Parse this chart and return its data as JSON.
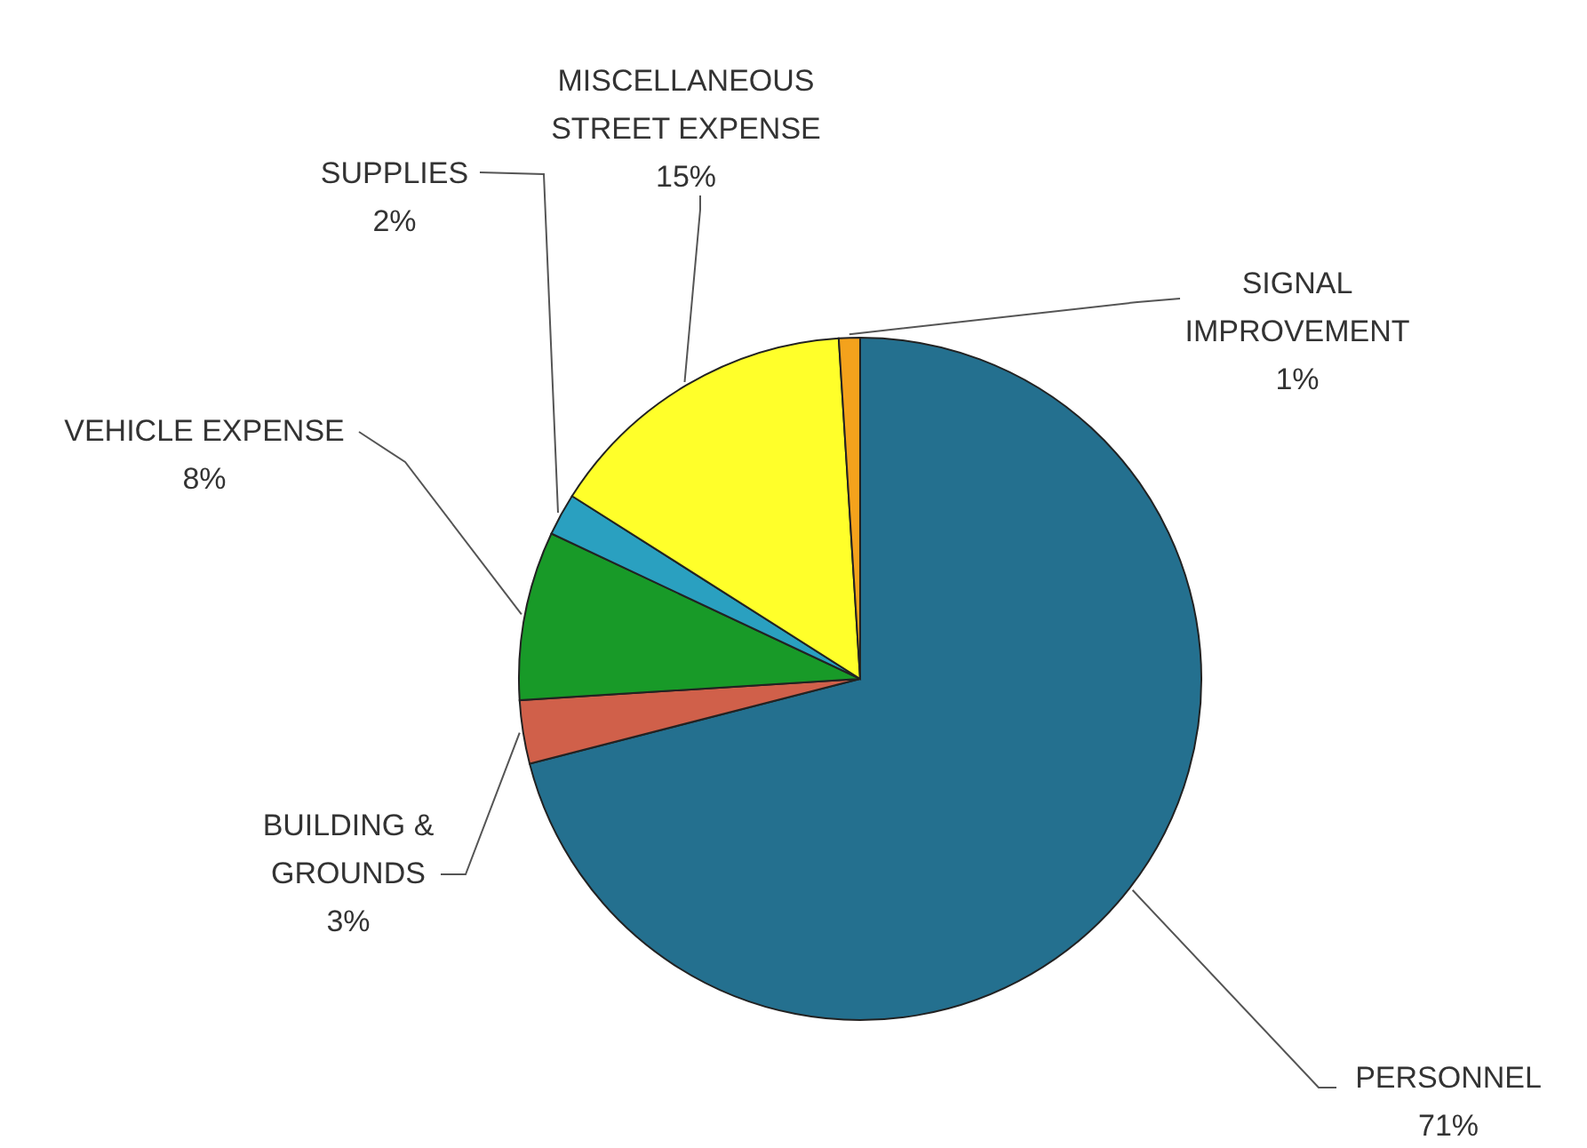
{
  "chart_data": {
    "type": "pie",
    "categories": [
      "PERSONNEL",
      "BUILDING & GROUNDS",
      "VEHICLE EXPENSE",
      "SUPPLIES",
      "MISCELLANEOUS STREET EXPENSE",
      "SIGNAL IMPROVEMENT"
    ],
    "values": [
      71,
      3,
      8,
      2,
      15,
      1
    ],
    "colors": [
      "#24708f",
      "#d0604a",
      "#189a28",
      "#2aa0c0",
      "#ffff2a",
      "#f4a21c"
    ],
    "value_labels": [
      "71%",
      "3%",
      "8%",
      "2%",
      "15%",
      "1%"
    ]
  }
}
